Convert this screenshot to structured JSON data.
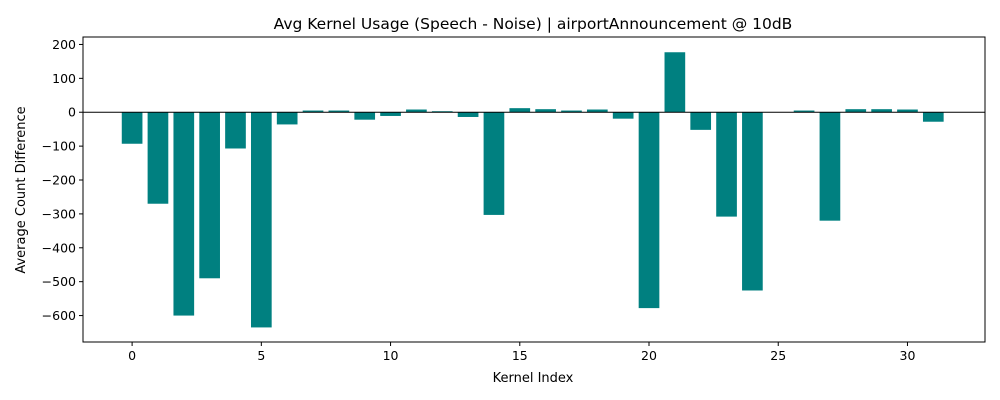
{
  "chart_data": {
    "type": "bar",
    "title": "Avg Kernel Usage (Speech - Noise) | airportAnnouncement @ 10dB",
    "xlabel": "Kernel Index",
    "ylabel": "Average Count Difference",
    "x": [
      0,
      1,
      2,
      3,
      4,
      5,
      6,
      7,
      8,
      9,
      10,
      11,
      12,
      13,
      14,
      15,
      16,
      17,
      18,
      19,
      20,
      21,
      22,
      23,
      24,
      25,
      26,
      27,
      28,
      29,
      30,
      31
    ],
    "values": [
      -93,
      -270,
      -600,
      -490,
      -107,
      -635,
      -36,
      5,
      5,
      -22,
      -11,
      8,
      3,
      -14,
      -303,
      12,
      9,
      5,
      8,
      -19,
      -578,
      177,
      -52,
      -308,
      -526,
      0,
      5,
      -320,
      9,
      9,
      8,
      -28
    ],
    "bar_color": "#008080",
    "xlim": [
      -1.9,
      33.0
    ],
    "ylim": [
      -678,
      222
    ],
    "xticks": [
      0,
      5,
      10,
      15,
      20,
      25,
      30
    ],
    "yticks": [
      200,
      100,
      0,
      -100,
      -200,
      -300,
      -400,
      -500,
      -600
    ],
    "xtick_labels": [
      "0",
      "5",
      "10",
      "15",
      "20",
      "25",
      "30"
    ],
    "ytick_labels": [
      "200",
      "100",
      "0",
      "−100",
      "−200",
      "−300",
      "−400",
      "−500",
      "−600"
    ],
    "zero_line": true,
    "grid": false,
    "legend": null
  }
}
